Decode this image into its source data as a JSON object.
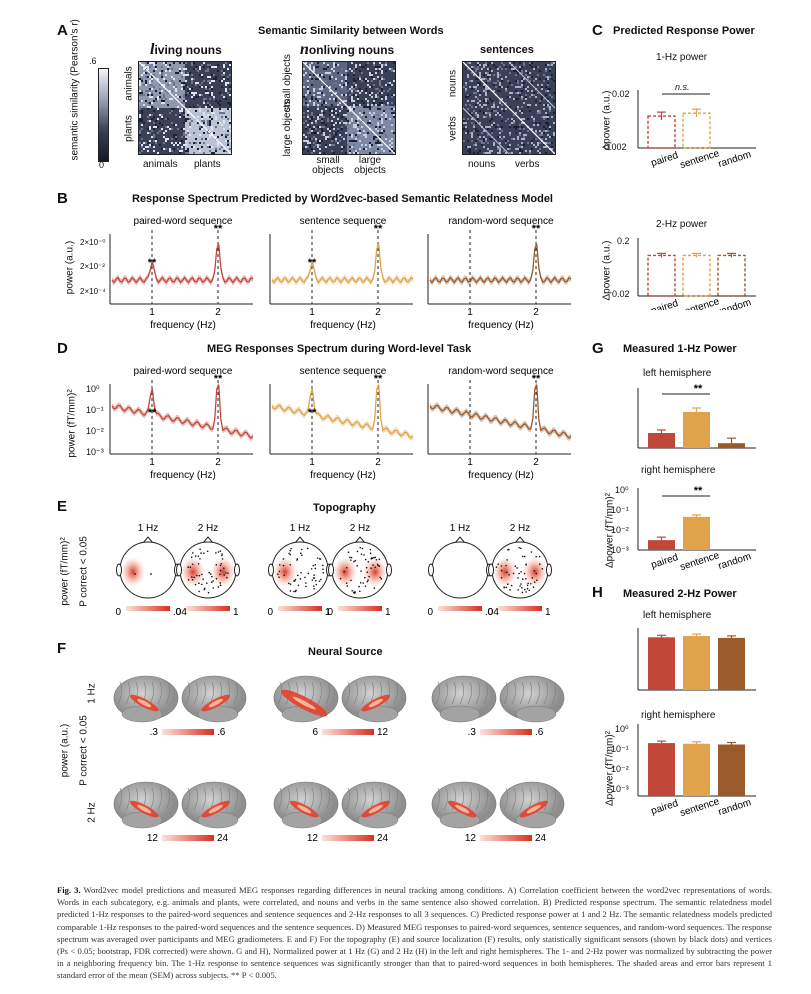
{
  "panelA": {
    "label": "A",
    "title": "Semantic Similarity between Words",
    "colorbar": {
      "max": ".6",
      "min": "0",
      "label": "semantic similarity (Pearson's r)"
    },
    "living": {
      "title_prefix": "l",
      "title_rest": "iving nouns",
      "x1": "animals",
      "x2": "plants",
      "y1": "animals",
      "y2": "plants"
    },
    "nonliving": {
      "title_prefix": "n",
      "title_rest": "onliving nouns",
      "x1": "small objects",
      "x2": "large objects",
      "y1": "small objects",
      "y2": "large objects"
    },
    "sentences": {
      "title": "sentences",
      "x1": "nouns",
      "x2": "verbs",
      "y1": "nouns",
      "y2": "verbs"
    }
  },
  "panelB": {
    "label": "B",
    "title": "Response Spectrum Predicted by Word2vec-based Semantic Relatedness Model",
    "ylabel": "power (a.u.)",
    "yticks": [
      "2×10⁻⁰",
      "2×10⁻²",
      "2×10⁻⁴"
    ],
    "xlabel": "frequency (Hz)",
    "xticks": [
      "1",
      "2"
    ],
    "subtitles": [
      "paired-word sequence",
      "sentence sequence",
      "random-word sequence"
    ],
    "sig": "**"
  },
  "panelC": {
    "label": "C",
    "title": "Predicted Response Power",
    "sub1": "1-Hz power",
    "sub2": "2-Hz power",
    "ylabel": "Δpower (a.u.)",
    "ticks1": [
      "0.02",
      "0.002"
    ],
    "ticks2": [
      "0.2",
      "0.02"
    ],
    "ns": "n.s.",
    "categories": [
      "paired",
      "sentence",
      "random"
    ],
    "values_1hz": [
      0.011,
      0.012,
      0.0
    ],
    "values_2hz": [
      0.14,
      0.14,
      0.14
    ]
  },
  "panelD": {
    "label": "D",
    "title": "MEG Responses Spectrum during Word-level Task",
    "ylabel": "power (fT/mm)²",
    "yticks": [
      "10⁰",
      "10⁻¹",
      "10⁻²",
      "10⁻³"
    ],
    "xlabel": "frequency (Hz)",
    "xticks": [
      "1",
      "2"
    ],
    "subtitles": [
      "paired-word sequence",
      "sentence sequence",
      "random-word sequence"
    ],
    "sig": "**"
  },
  "panelE": {
    "label": "E",
    "title": "Topography",
    "ylabel1": "power (fT/mm)²",
    "ylabel2": "P correct < 0.05",
    "heads": [
      "1 Hz",
      "2 Hz",
      "1 Hz",
      "2 Hz",
      "1 Hz",
      "2 Hz"
    ],
    "scales": [
      [
        "0",
        ".04"
      ],
      [
        "0",
        "1"
      ],
      [
        "0",
        "1"
      ],
      [
        "0",
        "1"
      ],
      [
        "0",
        ".04"
      ],
      [
        "0",
        "1"
      ]
    ]
  },
  "panelF": {
    "label": "F",
    "title": "Neural Source",
    "ylabel1": "power (a.u.)",
    "ylabel2": "P correct < 0.05",
    "row1": "1 Hz",
    "row2": "2 Hz",
    "scales1": [
      [
        ".3",
        ".6"
      ],
      [
        "6",
        "12"
      ],
      [
        ".3",
        ".6"
      ]
    ],
    "scales2": [
      [
        "12",
        "24"
      ],
      [
        "12",
        "24"
      ],
      [
        "12",
        "24"
      ]
    ]
  },
  "panelG": {
    "label": "G",
    "title": "Measured 1-Hz Power",
    "left": "left hemisphere",
    "right": "right hemisphere",
    "ylabel": "Δpower (fT/mm)²",
    "yticks": [
      "10⁰",
      "10⁻¹",
      "10⁻²",
      "10⁻³"
    ],
    "sig": "**",
    "categories": [
      "paired",
      "sentence",
      "random"
    ],
    "left_values": [
      0.25,
      0.6,
      0.08
    ],
    "right_values": [
      0.003,
      0.04,
      0.0
    ]
  },
  "panelH": {
    "label": "H",
    "title": "Measured 2-Hz Power",
    "left": "left hemisphere",
    "right": "right hemisphere",
    "ylabel": "Δpower (fT/mm)²",
    "yticks": [
      "10⁰",
      "10⁻¹",
      "10⁻²",
      "10⁻³"
    ],
    "categories": [
      "paired",
      "sentence",
      "random"
    ],
    "left_values": [
      0.85,
      0.87,
      0.84
    ],
    "right_values": [
      0.16,
      0.15,
      0.14
    ]
  },
  "colors": {
    "paired": "#c0473a",
    "sentence": "#e0a24a",
    "random": "#9a5a2a",
    "matrixBg": "#3a4058"
  },
  "caption": {
    "lead": "Fig. 3.",
    "text": "Word2vec model predictions and measured MEG responses regarding differences in neural tracking among conditions. A) Correlation coefficient between the word2vec representations of words. Words in each subcategory, e.g. animals and plants, were correlated, and nouns and verbs in the same sentence also showed correlation. B) Predicted response spectrum. The semantic relatedness model predicted 1-Hz responses to the paired-word sequences and sentence sequences and 2-Hz responses to all 3 sequences. C) Predicted response power at 1 and 2 Hz. The semantic relatedness models predicted comparable 1-Hz responses to the paired-word sequences and the sentence sequences. D) Measured MEG responses to paired-word sequences, sentence sequences, and random-word sequences. The response spectrum was averaged over participants and MEG gradiometers. E and F) For the topography (E) and source localization (F) results, only statistically significant sensors (shown by black dots) and vertices (Ps < 0.05; bootstrap, FDR corrected) were shown. G and H), Normalized power at 1 Hz (G) and 2 Hz (H) in the left and right hemispheres. The 1- and 2-Hz power was normalized by subtracting the power in a neighboring frequency bin. The 1-Hz response to sentence sequences was significantly stronger than that to paired-word sequences in both hemispheres. The shaded areas and error bars represent 1 standard error of the mean (SEM) across subjects. ** P < 0.005."
  }
}
